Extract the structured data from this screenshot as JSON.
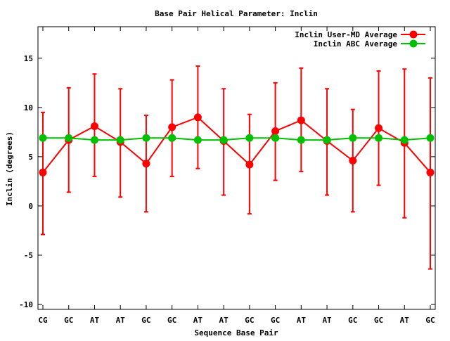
{
  "chart_data": {
    "type": "line",
    "title": "Base Pair Helical Parameter: Inclin",
    "xlabel": "Sequence Base Pair",
    "ylabel": "Inclin (degrees)",
    "ylim": [
      -10.5,
      18.2
    ],
    "yticks": [
      -10,
      -5,
      0,
      5,
      10,
      15
    ],
    "categories": [
      "CG",
      "GC",
      "AT",
      "AT",
      "GC",
      "GC",
      "AT",
      "AT",
      "GC",
      "GC",
      "AT",
      "AT",
      "GC",
      "GC",
      "AT",
      "GC"
    ],
    "legend_position": "top-right",
    "series": [
      {
        "name": "Inclin User-MD Average",
        "color": "#ff0000",
        "values": [
          3.4,
          6.7,
          8.1,
          6.5,
          4.3,
          8.0,
          9.0,
          6.6,
          4.2,
          7.6,
          8.7,
          6.6,
          4.6,
          7.9,
          6.4,
          3.4
        ],
        "error_low": [
          -2.9,
          1.4,
          3.0,
          0.9,
          -0.6,
          3.0,
          3.8,
          1.1,
          -0.8,
          2.6,
          3.5,
          1.1,
          -0.6,
          2.1,
          -1.2,
          -6.4
        ],
        "error_high": [
          9.5,
          12.0,
          13.4,
          11.9,
          9.2,
          12.8,
          14.2,
          11.9,
          9.3,
          12.5,
          14.0,
          11.9,
          9.8,
          13.7,
          13.9,
          13.0
        ]
      },
      {
        "name": "Inclin ABC Average",
        "color": "#00c000",
        "values": [
          6.9,
          6.9,
          6.7,
          6.7,
          6.9,
          6.9,
          6.7,
          6.7,
          6.9,
          6.9,
          6.7,
          6.7,
          6.9,
          6.9,
          6.7,
          6.9
        ]
      }
    ]
  }
}
